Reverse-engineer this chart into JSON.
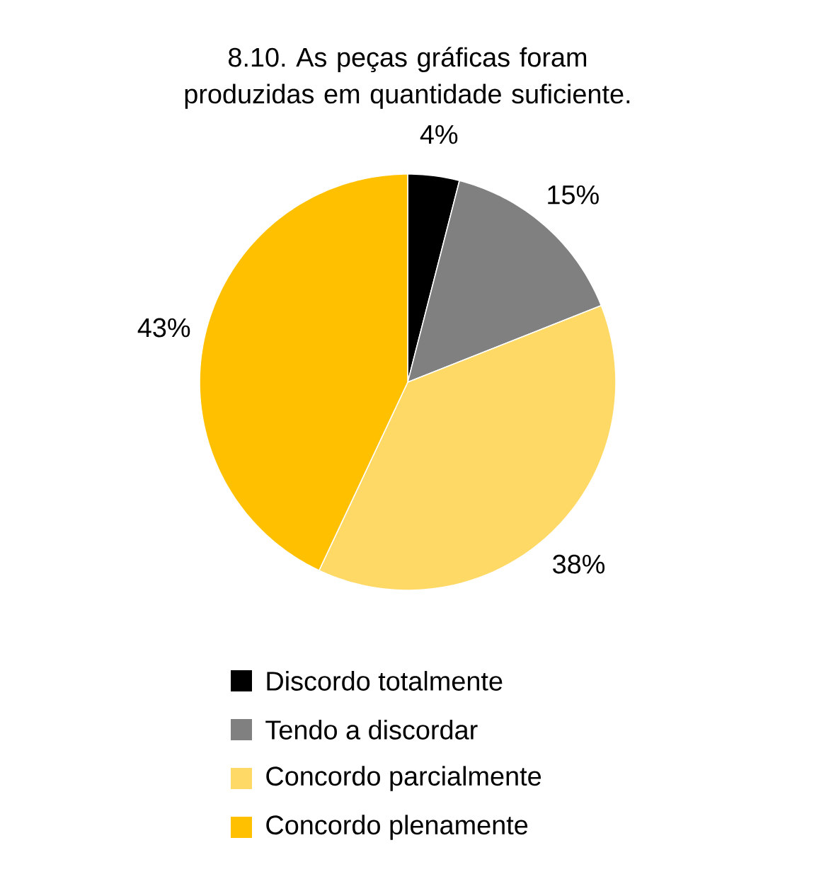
{
  "chart_data": {
    "type": "pie",
    "title": "8.10. As peças gráficas foram produzidas em quantidade suficiente.",
    "categories": [
      "Discordo totalmente",
      "Tendo a discordar",
      "Concordo parcialmente",
      "Concordo plenamente"
    ],
    "values": [
      4,
      15,
      38,
      43
    ],
    "colors": [
      "#000000",
      "#808080",
      "#ffd966",
      "#ffc000"
    ],
    "value_labels": [
      "4%",
      "15%",
      "38%",
      "43%"
    ],
    "legend": "bottom"
  }
}
